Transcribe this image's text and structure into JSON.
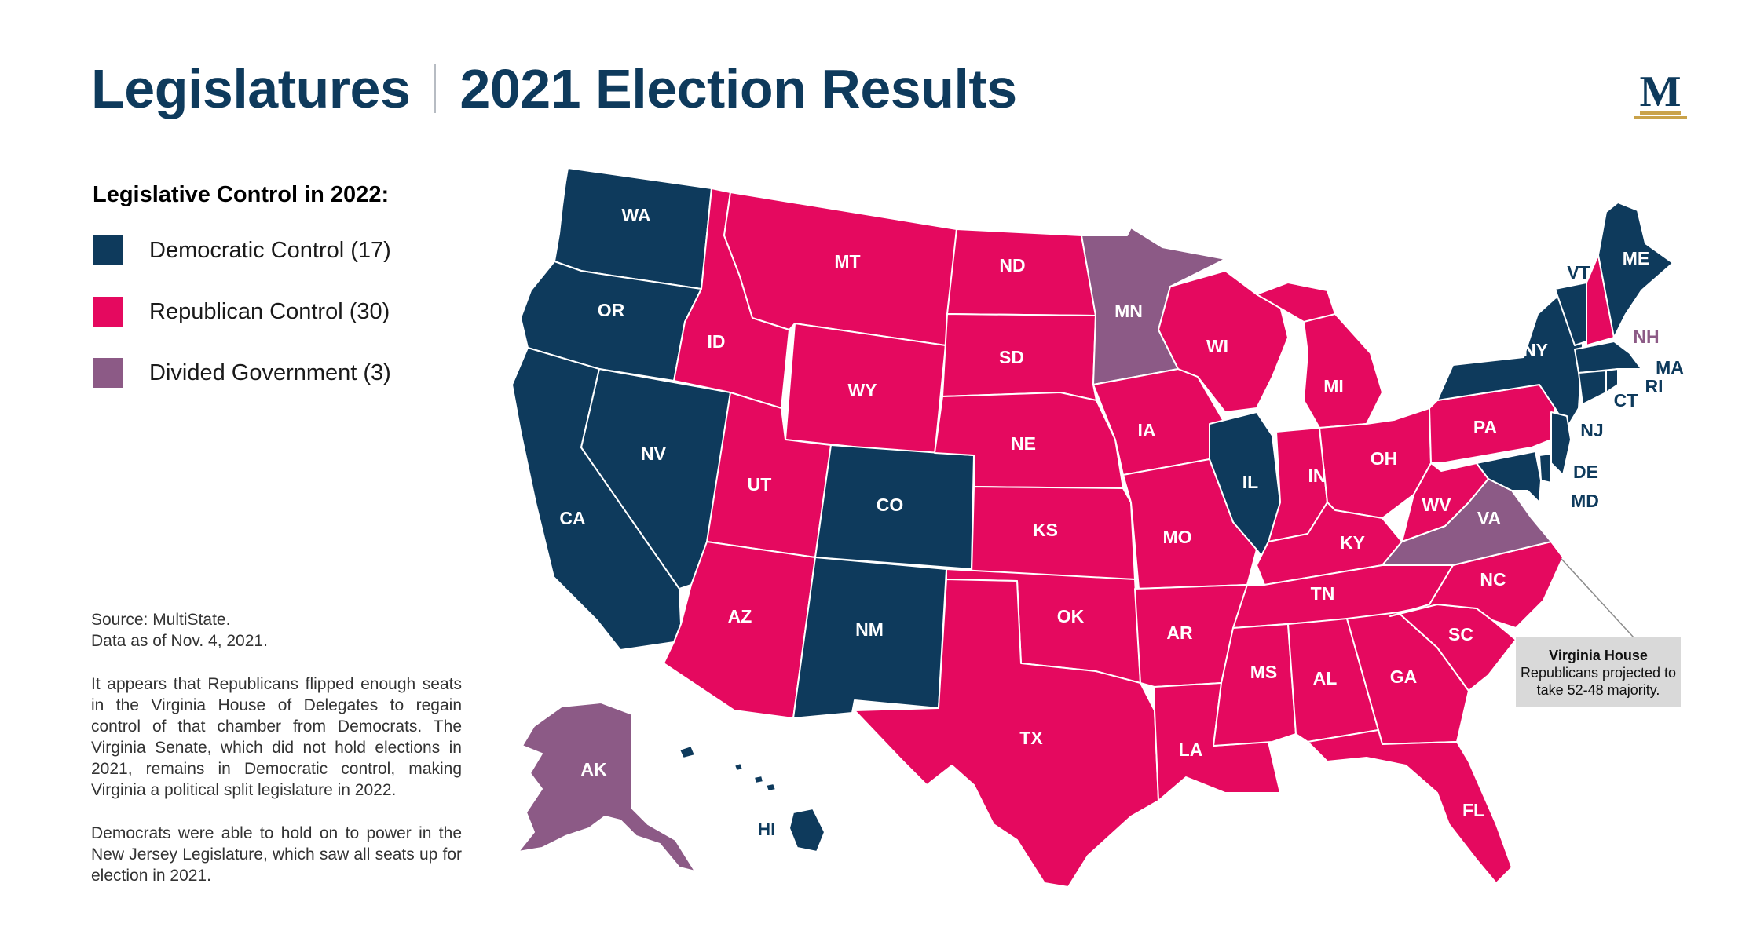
{
  "header": {
    "title_left": "Legislatures",
    "title_right": "2021 Election Results",
    "logo_letter": "M"
  },
  "legend": {
    "title": "Legislative Control in 2022:",
    "items": [
      {
        "label": "Democratic Control (17)",
        "color": "#0e3a5c"
      },
      {
        "label": "Republican Control (30)",
        "color": "#e5095f"
      },
      {
        "label": "Divided Government (3)",
        "color": "#8c5a86"
      }
    ]
  },
  "notes": {
    "source": "Source: MultiState.",
    "date": "Data as of Nov. 4, 2021.",
    "para1": "It appears that Republicans flipped enough seats in the Virginia House of Delegates to regain control of that chamber from Democrats. The Virginia Senate, which did not hold elections in 2021, remains in Democratic control, making Virginia a political split legislature in 2022.",
    "para2": "Democrats were able to hold on to power in the New Jersey Legislature, which saw all seats up for election in 2021."
  },
  "callout": {
    "title": "Virginia House",
    "text": "Republicans projected to take 52-48 majority."
  },
  "colors": {
    "dem": "#0e3a5c",
    "rep": "#e5095f",
    "div": "#8c5a86"
  },
  "states": {
    "WA": "dem",
    "OR": "dem",
    "CA": "dem",
    "NV": "dem",
    "CO": "dem",
    "NM": "dem",
    "HI": "dem",
    "IL": "dem",
    "NY": "dem",
    "VT": "dem",
    "ME": "dem",
    "MA": "dem",
    "RI": "dem",
    "CT": "dem",
    "NJ": "dem",
    "DE": "dem",
    "MD": "dem",
    "ID": "rep",
    "MT": "rep",
    "WY": "rep",
    "UT": "rep",
    "AZ": "rep",
    "ND": "rep",
    "SD": "rep",
    "NE": "rep",
    "KS": "rep",
    "OK": "rep",
    "TX": "rep",
    "IA": "rep",
    "MO": "rep",
    "AR": "rep",
    "LA": "rep",
    "WI": "rep",
    "MI": "rep",
    "IN": "rep",
    "OH": "rep",
    "KY": "rep",
    "TN": "rep",
    "MS": "rep",
    "AL": "rep",
    "GA": "rep",
    "FL": "rep",
    "SC": "rep",
    "NC": "rep",
    "WV": "rep",
    "PA": "rep",
    "NH": "rep",
    "MN": "div",
    "VA": "div",
    "AK": "div"
  }
}
